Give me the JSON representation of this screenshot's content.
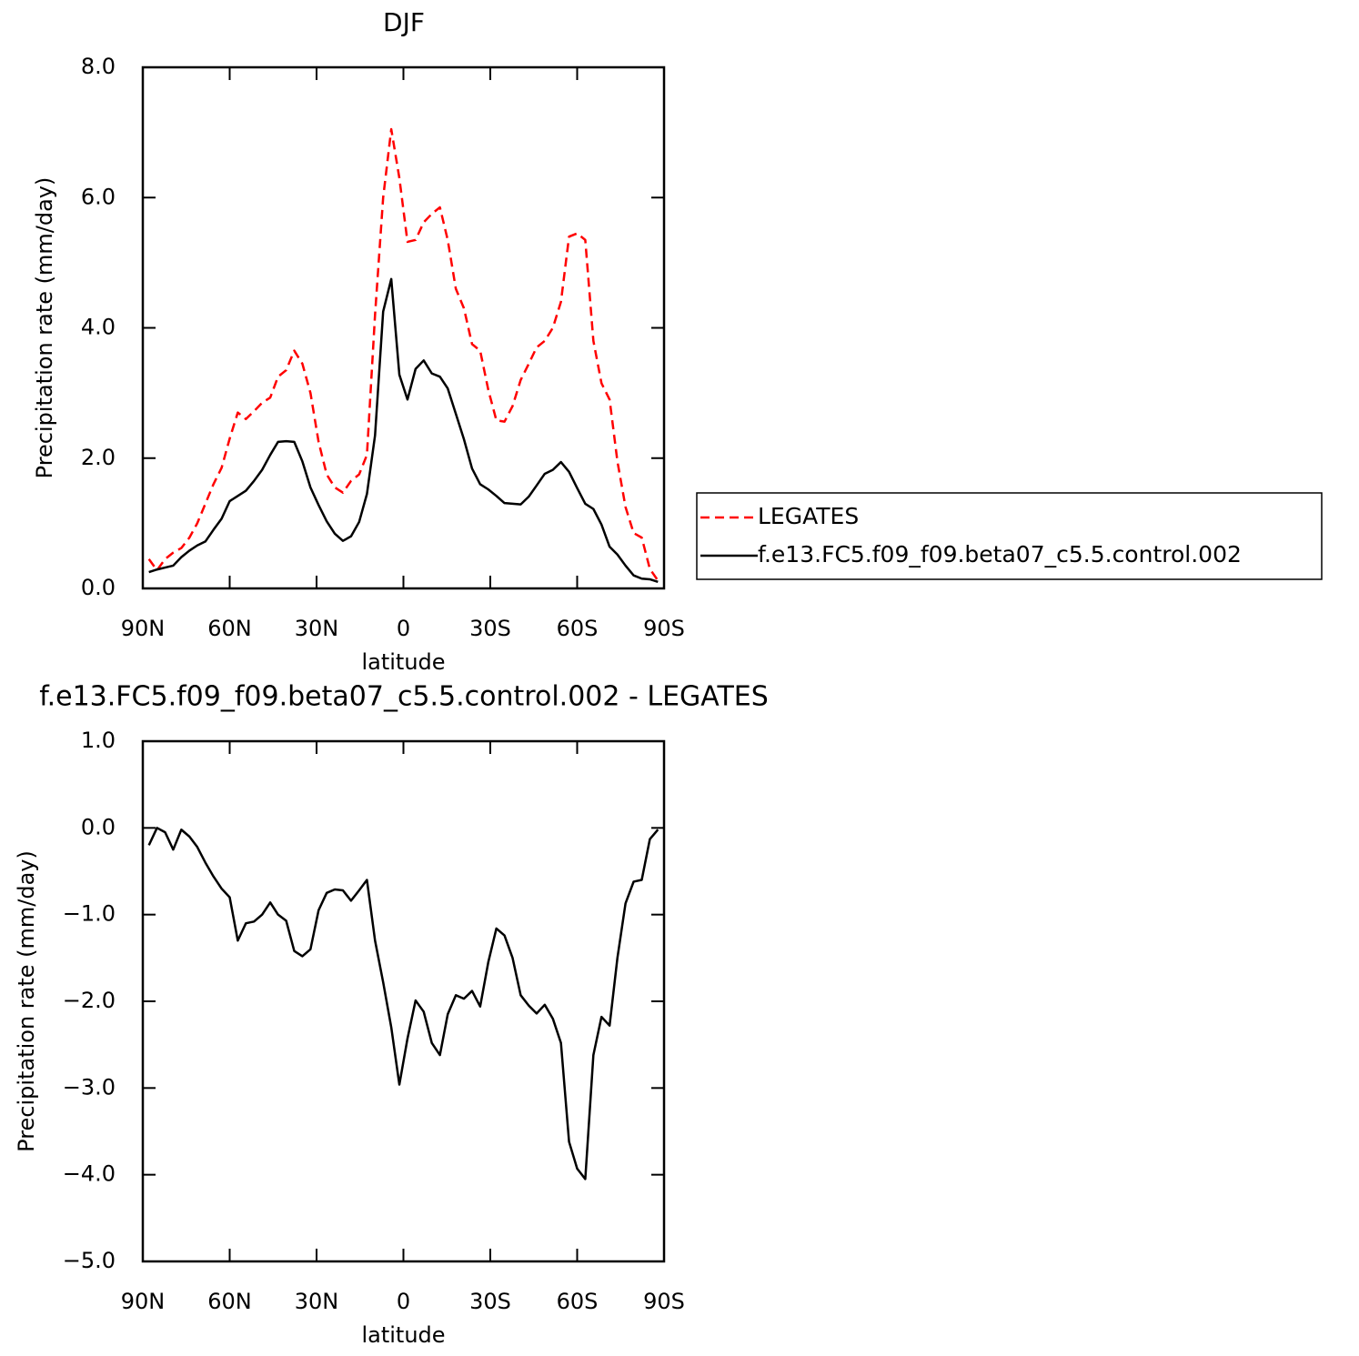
{
  "chart_data": [
    {
      "type": "line",
      "title": "DJF",
      "x_label": "latitude",
      "y_label": "Precipitation rate (mm/day)",
      "x": [
        87.9,
        85.1,
        82.3,
        79.5,
        76.7,
        73.9,
        71.2,
        68.4,
        65.6,
        62.8,
        60.0,
        57.2,
        54.4,
        51.6,
        48.8,
        46.0,
        43.3,
        40.5,
        37.7,
        34.9,
        32.1,
        29.3,
        26.5,
        23.7,
        20.9,
        18.1,
        15.3,
        12.6,
        9.8,
        7.0,
        4.2,
        1.4,
        -1.4,
        -4.2,
        -7.0,
        -9.8,
        -12.6,
        -15.3,
        -18.1,
        -20.9,
        -23.7,
        -26.5,
        -29.3,
        -32.1,
        -34.9,
        -37.7,
        -40.5,
        -43.3,
        -46.0,
        -48.8,
        -51.6,
        -54.4,
        -57.2,
        -60.0,
        -62.8,
        -65.6,
        -68.4,
        -71.2,
        -73.9,
        -76.7,
        -79.5,
        -82.3,
        -85.1,
        -87.9
      ],
      "xlim": [
        90,
        -90
      ],
      "xticks": [
        {
          "value": 90,
          "label": "90N"
        },
        {
          "value": 60,
          "label": "60N"
        },
        {
          "value": 30,
          "label": "30N"
        },
        0,
        {
          "value": -30,
          "label": "30S"
        },
        {
          "value": -60,
          "label": "60S"
        },
        {
          "value": -90,
          "label": "90S"
        }
      ],
      "ylim": [
        0,
        8
      ],
      "yticks": [
        {
          "value": 0,
          "label": "0.0"
        },
        {
          "value": 2,
          "label": "2.0"
        },
        {
          "value": 4,
          "label": "4.0"
        },
        {
          "value": 6,
          "label": "6.0"
        },
        {
          "value": 8,
          "label": "8.0"
        }
      ],
      "legend": "right",
      "series": [
        {
          "name": "LEGATES",
          "color": "#ff0000",
          "dashed": true,
          "values": [
            0.45,
            0.28,
            0.45,
            0.55,
            0.62,
            0.78,
            1.0,
            1.3,
            1.6,
            1.85,
            2.3,
            2.7,
            2.6,
            2.72,
            2.85,
            2.93,
            3.25,
            3.35,
            3.65,
            3.45,
            3.0,
            2.25,
            1.75,
            1.55,
            1.47,
            1.65,
            1.75,
            2.05,
            4.2,
            6.0,
            7.05,
            6.3,
            5.32,
            5.35,
            5.62,
            5.75,
            5.85,
            5.35,
            4.6,
            4.3,
            3.75,
            3.65,
            3.05,
            2.58,
            2.56,
            2.8,
            3.2,
            3.45,
            3.7,
            3.8,
            4.0,
            4.4,
            5.4,
            5.45,
            5.35,
            3.8,
            3.15,
            2.9,
            1.95,
            1.25,
            0.85,
            0.78,
            0.3,
            0.12
          ]
        },
        {
          "name": "f.e13.FC5.f09_f09.beta07_c5.5.control.002",
          "color": "#000000",
          "dashed": false,
          "values": [
            0.25,
            0.29,
            0.32,
            0.35,
            0.48,
            0.58,
            0.66,
            0.72,
            0.9,
            1.07,
            1.34,
            1.42,
            1.5,
            1.65,
            1.82,
            2.05,
            2.25,
            2.26,
            2.25,
            1.95,
            1.55,
            1.28,
            1.03,
            0.84,
            0.73,
            0.8,
            1.02,
            1.45,
            2.35,
            4.25,
            4.75,
            3.28,
            2.9,
            3.37,
            3.5,
            3.3,
            3.25,
            3.07,
            2.68,
            2.29,
            1.84,
            1.6,
            1.52,
            1.42,
            1.31,
            1.3,
            1.29,
            1.41,
            1.58,
            1.76,
            1.82,
            1.94,
            1.79,
            1.54,
            1.3,
            1.22,
            0.98,
            0.64,
            0.52,
            0.35,
            0.2,
            0.15,
            0.14,
            0.1
          ]
        }
      ]
    },
    {
      "type": "line",
      "title": "f.e13.FC5.f09_f09.beta07_c5.5.control.002 - LEGATES",
      "x_label": "latitude",
      "y_label": "Precipitation rate (mm/day)",
      "x": [
        87.9,
        85.1,
        82.3,
        79.5,
        76.7,
        73.9,
        71.2,
        68.4,
        65.6,
        62.8,
        60.0,
        57.2,
        54.4,
        51.6,
        48.8,
        46.0,
        43.3,
        40.5,
        37.7,
        34.9,
        32.1,
        29.3,
        26.5,
        23.7,
        20.9,
        18.1,
        15.3,
        12.6,
        9.8,
        7.0,
        4.2,
        1.4,
        -1.4,
        -4.2,
        -7.0,
        -9.8,
        -12.6,
        -15.3,
        -18.1,
        -20.9,
        -23.7,
        -26.5,
        -29.3,
        -32.1,
        -34.9,
        -37.7,
        -40.5,
        -43.3,
        -46.0,
        -48.8,
        -51.6,
        -54.4,
        -57.2,
        -60.0,
        -62.8,
        -65.6,
        -68.4,
        -71.2,
        -73.9,
        -76.7,
        -79.5,
        -82.3,
        -85.1,
        -87.9
      ],
      "xlim": [
        90,
        -90
      ],
      "xticks": [
        {
          "value": 90,
          "label": "90N"
        },
        {
          "value": 60,
          "label": "60N"
        },
        {
          "value": 30,
          "label": "30N"
        },
        0,
        {
          "value": -30,
          "label": "30S"
        },
        {
          "value": -60,
          "label": "60S"
        },
        {
          "value": -90,
          "label": "90S"
        }
      ],
      "ylim": [
        -5,
        1
      ],
      "yticks": [
        {
          "value": -5,
          "label": "−5.0"
        },
        {
          "value": -4,
          "label": "−4.0"
        },
        {
          "value": -3,
          "label": "−3.0"
        },
        {
          "value": -2,
          "label": "−2.0"
        },
        {
          "value": -1,
          "label": "−1.0"
        },
        {
          "value": 0,
          "label": "0.0"
        },
        {
          "value": 1,
          "label": "1.0"
        }
      ],
      "series": [
        {
          "color": "#000000",
          "dashed": false,
          "values": [
            -0.2,
            0.0,
            -0.05,
            -0.25,
            -0.02,
            -0.1,
            -0.22,
            -0.4,
            -0.56,
            -0.7,
            -0.8,
            -1.3,
            -1.1,
            -1.08,
            -1.0,
            -0.86,
            -1.0,
            -1.07,
            -1.42,
            -1.48,
            -1.4,
            -0.95,
            -0.75,
            -0.71,
            -0.72,
            -0.84,
            -0.72,
            -0.6,
            -1.3,
            -1.78,
            -2.3,
            -2.96,
            -2.43,
            -1.99,
            -2.12,
            -2.48,
            -2.62,
            -2.15,
            -1.93,
            -1.97,
            -1.88,
            -2.06,
            -1.55,
            -1.16,
            -1.24,
            -1.5,
            -1.93,
            -2.05,
            -2.14,
            -2.04,
            -2.2,
            -2.48,
            -3.62,
            -3.93,
            -4.05,
            -2.62,
            -2.18,
            -2.28,
            -1.5,
            -0.87,
            -0.62,
            -0.6,
            -0.13,
            -0.02
          ]
        }
      ]
    }
  ]
}
